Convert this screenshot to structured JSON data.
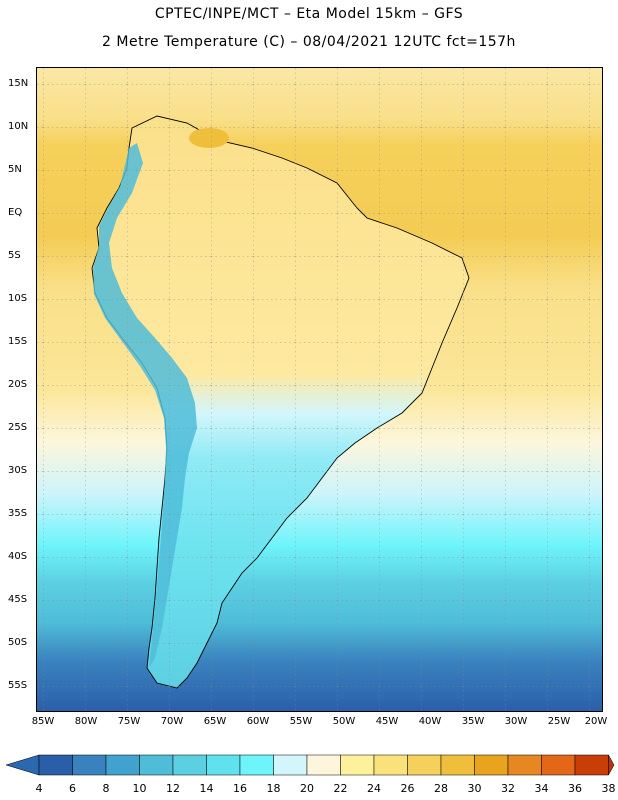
{
  "header": {
    "line1": "CPTEC/INPE/MCT –  Eta Model 15km – GFS",
    "line2": "2 Metre Temperature (C) – 08/04/2021 12UTC fct=157h"
  },
  "axes": {
    "lat_labels": [
      "15N",
      "10N",
      "5N",
      "EQ",
      "5S",
      "10S",
      "15S",
      "20S",
      "25S",
      "30S",
      "35S",
      "40S",
      "45S",
      "50S",
      "55S"
    ],
    "lon_labels": [
      "85W",
      "80W",
      "75W",
      "70W",
      "65W",
      "60W",
      "55W",
      "50W",
      "45W",
      "40W",
      "35W",
      "30W",
      "25W",
      "20W"
    ]
  },
  "colorbar": {
    "ticks": [
      "4",
      "6",
      "8",
      "10",
      "12",
      "14",
      "16",
      "18",
      "20",
      "22",
      "24",
      "26",
      "28",
      "30",
      "32",
      "34",
      "36",
      "38"
    ],
    "colors": [
      "#2a5ea8",
      "#3a82bf",
      "#42a2cf",
      "#4fbcd8",
      "#5ccfe2",
      "#5fe2ee",
      "#6ef4fb",
      "#d3f6fc",
      "#fdf6dc",
      "#fdf19b",
      "#f9e27a",
      "#f5d05a",
      "#efbf3c",
      "#e9a41e",
      "#e78722",
      "#e46617",
      "#c93d07"
    ],
    "under_color": "#2a68b0",
    "over_color": "#b8340a"
  }
}
